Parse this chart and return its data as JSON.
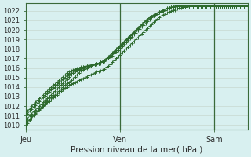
{
  "xlabel": "Pression niveau de la mer( hPa )",
  "bg_color": "#d8f0f0",
  "line_color": "#2d6a2d",
  "marker": "+",
  "marker_color": "#2d6a2d",
  "ylim": [
    1009.5,
    1022.8
  ],
  "yticks": [
    1010,
    1011,
    1012,
    1013,
    1014,
    1015,
    1016,
    1017,
    1018,
    1019,
    1020,
    1021,
    1022
  ],
  "xtick_labels": [
    "Jeu",
    "Ven",
    "Sam"
  ],
  "xtick_positions": [
    0,
    48,
    96
  ],
  "xlim": [
    0,
    113
  ],
  "vline_positions": [
    0,
    48,
    96
  ],
  "series": [
    [
      1010.2,
      1010.4,
      1010.6,
      1010.9,
      1011.1,
      1011.3,
      1011.5,
      1011.7,
      1011.9,
      1012.1,
      1012.3,
      1012.5,
      1012.7,
      1012.9,
      1013.1,
      1013.2,
      1013.4,
      1013.6,
      1013.8,
      1014.0,
      1014.2,
      1014.4,
      1014.5,
      1014.7,
      1014.9,
      1015.1,
      1015.3,
      1015.5,
      1015.7,
      1015.8,
      1015.9,
      1016.0,
      1016.1,
      1016.2,
      1016.3,
      1016.4,
      1016.5,
      1016.5,
      1016.6,
      1016.7,
      1016.8,
      1016.9,
      1017.0,
      1017.1,
      1017.3,
      1017.5,
      1017.7,
      1017.9,
      1018.1,
      1018.3,
      1018.5,
      1018.7,
      1018.9,
      1019.1,
      1019.3,
      1019.5,
      1019.7,
      1019.9,
      1020.1,
      1020.3,
      1020.5,
      1020.7,
      1020.9,
      1021.1,
      1021.3,
      1021.5,
      1021.6,
      1021.8,
      1021.9,
      1022.0,
      1022.1,
      1022.2,
      1022.3,
      1022.3,
      1022.4,
      1022.4,
      1022.4,
      1022.5,
      1022.5,
      1022.5,
      1022.5,
      1022.5,
      1022.5,
      1022.5,
      1022.5,
      1022.5,
      1022.5,
      1022.5,
      1022.5,
      1022.5,
      1022.5,
      1022.5,
      1022.5,
      1022.5,
      1022.5,
      1022.5,
      1022.5,
      1022.5,
      1022.5,
      1022.5,
      1022.5,
      1022.5,
      1022.5,
      1022.5,
      1022.5,
      1022.5,
      1022.5,
      1022.5,
      1022.5,
      1022.5,
      1022.5,
      1022.5,
      1022.5,
      1022.5
    ],
    [
      1010.0,
      1010.2,
      1010.5,
      1010.7,
      1011.0,
      1011.2,
      1011.4,
      1011.6,
      1011.8,
      1012.0,
      1012.2,
      1012.4,
      1012.5,
      1012.7,
      1012.9,
      1013.0,
      1013.2,
      1013.4,
      1013.6,
      1013.7,
      1013.9,
      1014.0,
      1014.2,
      1014.3,
      1014.4,
      1014.5,
      1014.6,
      1014.7,
      1014.8,
      1014.9,
      1015.0,
      1015.1,
      1015.2,
      1015.3,
      1015.4,
      1015.5,
      1015.6,
      1015.6,
      1015.7,
      1015.8,
      1015.9,
      1016.1,
      1016.2,
      1016.4,
      1016.6,
      1016.8,
      1017.0,
      1017.2,
      1017.4,
      1017.6,
      1017.8,
      1018.0,
      1018.2,
      1018.4,
      1018.6,
      1018.8,
      1019.0,
      1019.2,
      1019.4,
      1019.6,
      1019.8,
      1020.0,
      1020.2,
      1020.4,
      1020.6,
      1020.8,
      1021.0,
      1021.2,
      1021.3,
      1021.5,
      1021.6,
      1021.7,
      1021.8,
      1021.9,
      1022.0,
      1022.1,
      1022.1,
      1022.2,
      1022.3,
      1022.3,
      1022.4,
      1022.4,
      1022.4,
      1022.5,
      1022.5,
      1022.5,
      1022.5,
      1022.5,
      1022.5,
      1022.5,
      1022.5,
      1022.5,
      1022.5,
      1022.5,
      1022.5,
      1022.5,
      1022.5,
      1022.5,
      1022.5,
      1022.5,
      1022.5,
      1022.5,
      1022.5,
      1022.5,
      1022.5,
      1022.5,
      1022.5,
      1022.5,
      1022.5,
      1022.5,
      1022.5,
      1022.5,
      1022.5,
      1022.5
    ],
    [
      1010.5,
      1010.7,
      1011.0,
      1011.2,
      1011.4,
      1011.6,
      1011.8,
      1012.0,
      1012.2,
      1012.4,
      1012.6,
      1012.8,
      1013.0,
      1013.2,
      1013.4,
      1013.6,
      1013.8,
      1014.0,
      1014.2,
      1014.4,
      1014.6,
      1014.8,
      1015.1,
      1015.3,
      1015.5,
      1015.6,
      1015.7,
      1015.8,
      1015.9,
      1016.0,
      1016.1,
      1016.2,
      1016.2,
      1016.3,
      1016.4,
      1016.4,
      1016.5,
      1016.5,
      1016.6,
      1016.7,
      1016.8,
      1016.9,
      1017.1,
      1017.3,
      1017.5,
      1017.7,
      1017.9,
      1018.1,
      1018.3,
      1018.5,
      1018.7,
      1018.9,
      1019.1,
      1019.3,
      1019.5,
      1019.7,
      1019.9,
      1020.1,
      1020.3,
      1020.5,
      1020.7,
      1020.9,
      1021.1,
      1021.3,
      1021.4,
      1021.6,
      1021.7,
      1021.8,
      1021.9,
      1022.0,
      1022.1,
      1022.2,
      1022.3,
      1022.3,
      1022.4,
      1022.4,
      1022.5,
      1022.5,
      1022.5,
      1022.5,
      1022.5,
      1022.5,
      1022.5,
      1022.5,
      1022.5,
      1022.5,
      1022.5,
      1022.5,
      1022.5,
      1022.5,
      1022.5,
      1022.5,
      1022.5,
      1022.5,
      1022.5,
      1022.5,
      1022.5,
      1022.5,
      1022.5,
      1022.5,
      1022.5,
      1022.5,
      1022.5,
      1022.5,
      1022.5,
      1022.5,
      1022.5,
      1022.5,
      1022.5,
      1022.5,
      1022.5,
      1022.5,
      1022.5,
      1022.5
    ],
    [
      1011.0,
      1011.2,
      1011.5,
      1011.7,
      1011.9,
      1012.1,
      1012.3,
      1012.5,
      1012.7,
      1012.9,
      1013.1,
      1013.3,
      1013.5,
      1013.7,
      1013.9,
      1014.0,
      1014.2,
      1014.4,
      1014.6,
      1014.8,
      1015.0,
      1015.2,
      1015.4,
      1015.5,
      1015.7,
      1015.8,
      1015.9,
      1015.9,
      1016.0,
      1016.1,
      1016.1,
      1016.2,
      1016.2,
      1016.3,
      1016.3,
      1016.4,
      1016.4,
      1016.5,
      1016.5,
      1016.6,
      1016.7,
      1016.9,
      1017.1,
      1017.3,
      1017.5,
      1017.7,
      1017.9,
      1018.1,
      1018.3,
      1018.5,
      1018.7,
      1018.9,
      1019.1,
      1019.3,
      1019.5,
      1019.7,
      1019.9,
      1020.1,
      1020.3,
      1020.5,
      1020.7,
      1020.9,
      1021.1,
      1021.2,
      1021.4,
      1021.5,
      1021.7,
      1021.8,
      1021.9,
      1022.0,
      1022.1,
      1022.2,
      1022.2,
      1022.3,
      1022.4,
      1022.4,
      1022.5,
      1022.5,
      1022.5,
      1022.5,
      1022.5,
      1022.5,
      1022.5,
      1022.5,
      1022.5,
      1022.5,
      1022.5,
      1022.5,
      1022.5,
      1022.5,
      1022.5,
      1022.5,
      1022.5,
      1022.5,
      1022.5,
      1022.5,
      1022.5,
      1022.5,
      1022.5,
      1022.5,
      1022.5,
      1022.5,
      1022.5,
      1022.5,
      1022.5,
      1022.5,
      1022.5,
      1022.5,
      1022.5,
      1022.5,
      1022.5,
      1022.5,
      1022.5,
      1022.5
    ],
    [
      1011.3,
      1011.5,
      1011.7,
      1012.0,
      1012.2,
      1012.4,
      1012.6,
      1012.8,
      1013.0,
      1013.2,
      1013.4,
      1013.6,
      1013.8,
      1014.0,
      1014.2,
      1014.3,
      1014.5,
      1014.7,
      1014.9,
      1015.1,
      1015.3,
      1015.5,
      1015.6,
      1015.7,
      1015.8,
      1015.9,
      1016.0,
      1016.0,
      1016.1,
      1016.1,
      1016.2,
      1016.2,
      1016.3,
      1016.3,
      1016.4,
      1016.4,
      1016.5,
      1016.5,
      1016.6,
      1016.7,
      1016.8,
      1017.0,
      1017.2,
      1017.4,
      1017.6,
      1017.8,
      1018.0,
      1018.2,
      1018.4,
      1018.6,
      1018.8,
      1019.0,
      1019.2,
      1019.4,
      1019.6,
      1019.8,
      1020.0,
      1020.2,
      1020.4,
      1020.6,
      1020.8,
      1021.0,
      1021.1,
      1021.3,
      1021.4,
      1021.5,
      1021.6,
      1021.7,
      1021.8,
      1021.9,
      1022.0,
      1022.1,
      1022.2,
      1022.3,
      1022.4,
      1022.4,
      1022.5,
      1022.5,
      1022.5,
      1022.5,
      1022.5,
      1022.5,
      1022.5,
      1022.5,
      1022.5,
      1022.5,
      1022.5,
      1022.5,
      1022.5,
      1022.5,
      1022.5,
      1022.5,
      1022.5,
      1022.5,
      1022.5,
      1022.5,
      1022.5,
      1022.5,
      1022.5,
      1022.5,
      1022.5,
      1022.5,
      1022.5,
      1022.5,
      1022.5,
      1022.5,
      1022.5,
      1022.5,
      1022.5,
      1022.5,
      1022.5,
      1022.5,
      1022.5,
      1022.5
    ]
  ]
}
